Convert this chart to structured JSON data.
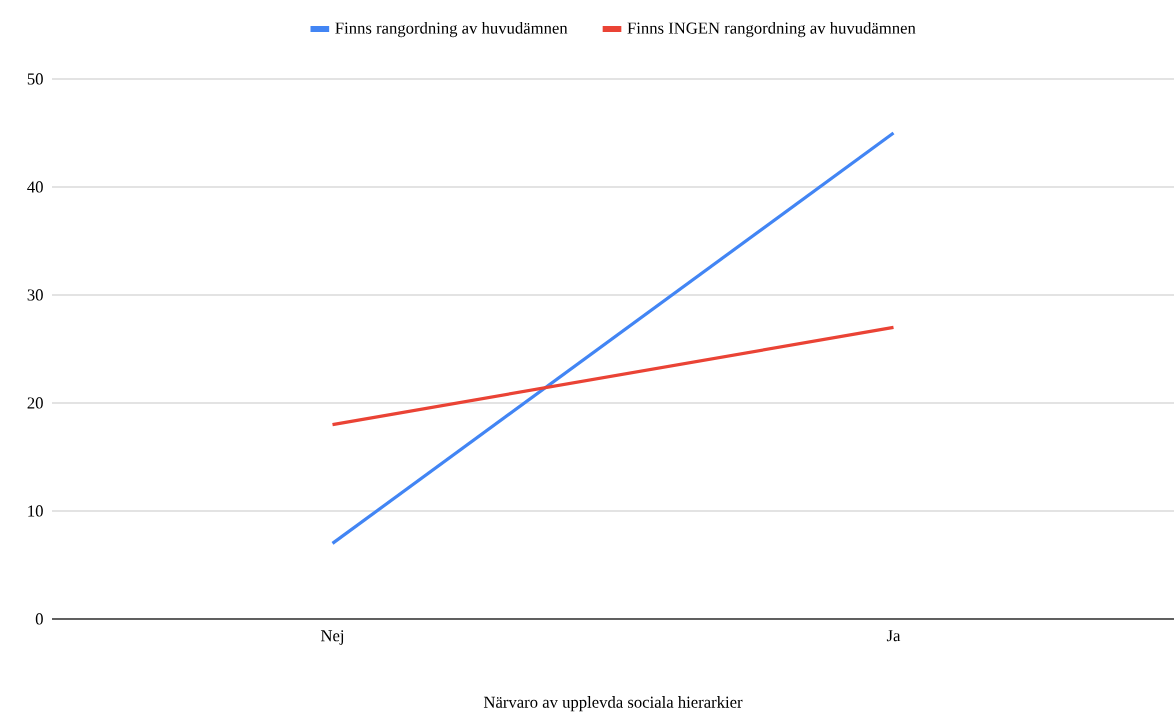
{
  "chart_data": {
    "type": "line",
    "xlabel": "Närvaro av upplevda sociala hierarkier",
    "categories": [
      "Nej",
      "Ja"
    ],
    "series": [
      {
        "name": "Finns rangordning av huvudämnen",
        "color": "#4285f4",
        "values": [
          7,
          45
        ]
      },
      {
        "name": "Finns INGEN rangordning av huvudämnen",
        "color": "#ea4335",
        "values": [
          18,
          27
        ]
      }
    ],
    "ylim": [
      0,
      50
    ],
    "yticks": [
      0,
      10,
      20,
      30,
      40,
      50
    ],
    "grid": "y",
    "legend": "top"
  }
}
